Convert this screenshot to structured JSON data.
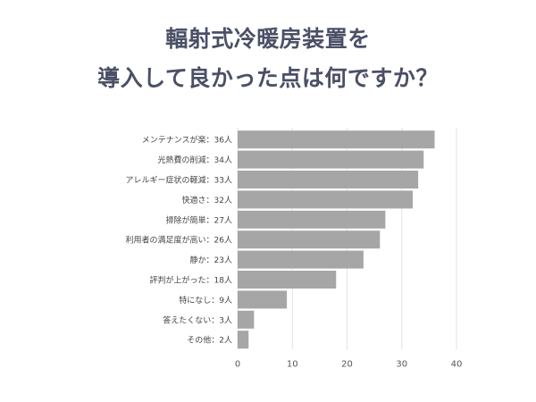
{
  "title_lines": [
    "輻射式冷暖房装置を",
    "導入して良かった点は何ですか？"
  ],
  "chart_data": {
    "type": "bar",
    "orientation": "horizontal",
    "title": "輻射式冷暖房装置を導入して良かった点は何ですか？",
    "categories": [
      "メンテナンスが楽：36人",
      "光熱費の削減：34人",
      "アレルギー症状の軽減：33人",
      "快適さ：32人",
      "掃除が簡単：27人",
      "利用者の満足度が高い：26人",
      "静か：23人",
      "評判が上がった：18人",
      "特になし：9人",
      "答えたくない：3人",
      "その他：2人"
    ],
    "values": [
      36,
      34,
      33,
      32,
      27,
      26,
      23,
      18,
      9,
      3,
      2
    ],
    "xlim": [
      0,
      40
    ],
    "xticks": [
      0,
      10,
      20,
      30,
      40
    ],
    "grid": true,
    "bar_color": "#a6a6a6"
  }
}
